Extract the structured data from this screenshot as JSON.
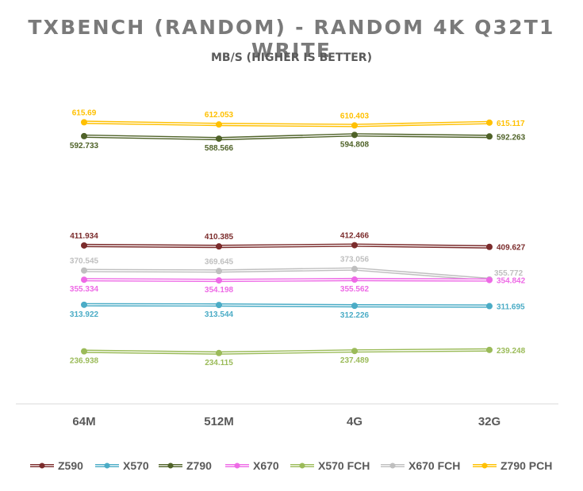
{
  "chart_data": {
    "type": "line",
    "title": "TXBENCH (RANDOM) - RANDOM 4K Q32T1 WRITE",
    "subtitle": "MB/S (HIGHER IS BETTER)",
    "categories": [
      "64M",
      "512M",
      "4G",
      "32G"
    ],
    "ylim": [
      150,
      700
    ],
    "grid": false,
    "legend_position": "bottom",
    "series": [
      {
        "name": "Z590",
        "color": "#7b2c2c",
        "values": [
          411.934,
          410.385,
          412.466,
          409.627
        ],
        "labels": [
          "411.934",
          "410.385",
          "412.466",
          "409.627"
        ]
      },
      {
        "name": "X570",
        "color": "#4bacc6",
        "values": [
          313.922,
          313.544,
          312.226,
          311.695
        ],
        "labels": [
          "313.922",
          "313.544",
          "312.226",
          "311.695"
        ]
      },
      {
        "name": "Z790",
        "color": "#4f6228",
        "values": [
          592.733,
          588.566,
          594.808,
          592.263
        ],
        "labels": [
          "592.733",
          "588.566",
          "594.808",
          "592.263"
        ]
      },
      {
        "name": "X670",
        "color": "#ee6ae6",
        "values": [
          355.334,
          354.198,
          355.562,
          354.842
        ],
        "labels": [
          "355.334",
          "354.198",
          "355.562",
          "354.842"
        ]
      },
      {
        "name": "X570 FCH",
        "color": "#9bbb59",
        "values": [
          236.938,
          234.115,
          237.489,
          239.248
        ],
        "labels": [
          "236.938",
          "234.115",
          "237.489",
          "239.248"
        ]
      },
      {
        "name": "X670 FCH",
        "color": "#bfbfbf",
        "values": [
          370.545,
          369.645,
          373.056,
          355.772
        ],
        "labels": [
          "370.545",
          "369.645",
          "373.056",
          "355.772"
        ]
      },
      {
        "name": "Z790 PCH",
        "color": "#ffc000",
        "values": [
          615.69,
          612.053,
          610.403,
          615.117
        ],
        "labels": [
          "615.69",
          "612.053",
          "610.403",
          "615.117"
        ]
      }
    ]
  }
}
